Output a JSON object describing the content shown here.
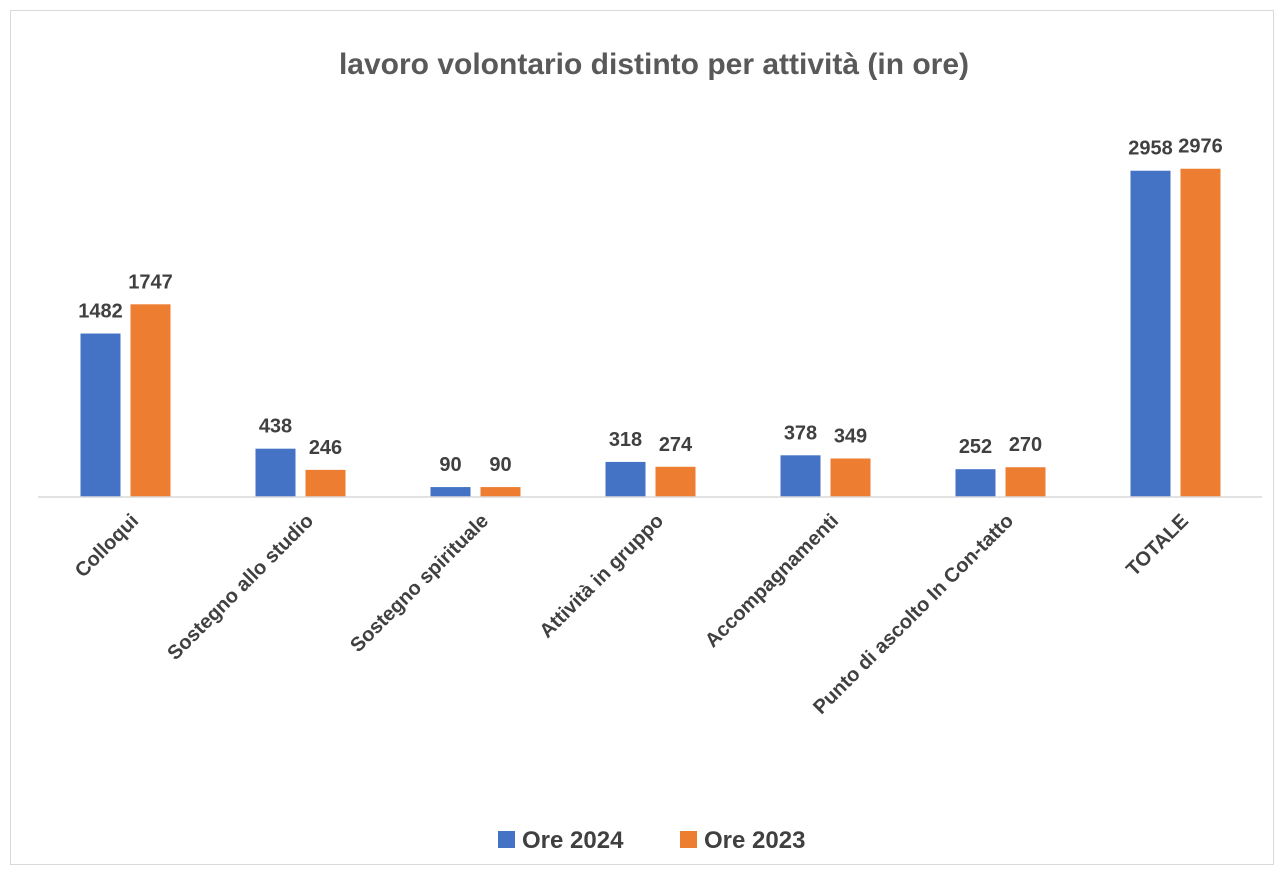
{
  "chart_data": {
    "type": "bar",
    "title": "lavoro volontario distinto per attività (in ore)",
    "categories": [
      "Colloqui",
      "Sostegno allo studio",
      "Sostegno spirituale",
      "Attività in gruppo",
      "Accompagnamenti",
      "Punto di ascolto In Con-tatto",
      "TOTALE"
    ],
    "series": [
      {
        "name": "Ore 2024",
        "color": "#4472C4",
        "values": [
          1482,
          438,
          90,
          318,
          378,
          252,
          2958
        ]
      },
      {
        "name": "Ore 2023",
        "color": "#ED7D31",
        "values": [
          1747,
          246,
          90,
          274,
          349,
          270,
          2976
        ]
      }
    ],
    "ylim": [
      0,
      3000
    ],
    "grid": false,
    "legend_position": "bottom",
    "data_labels": true
  }
}
